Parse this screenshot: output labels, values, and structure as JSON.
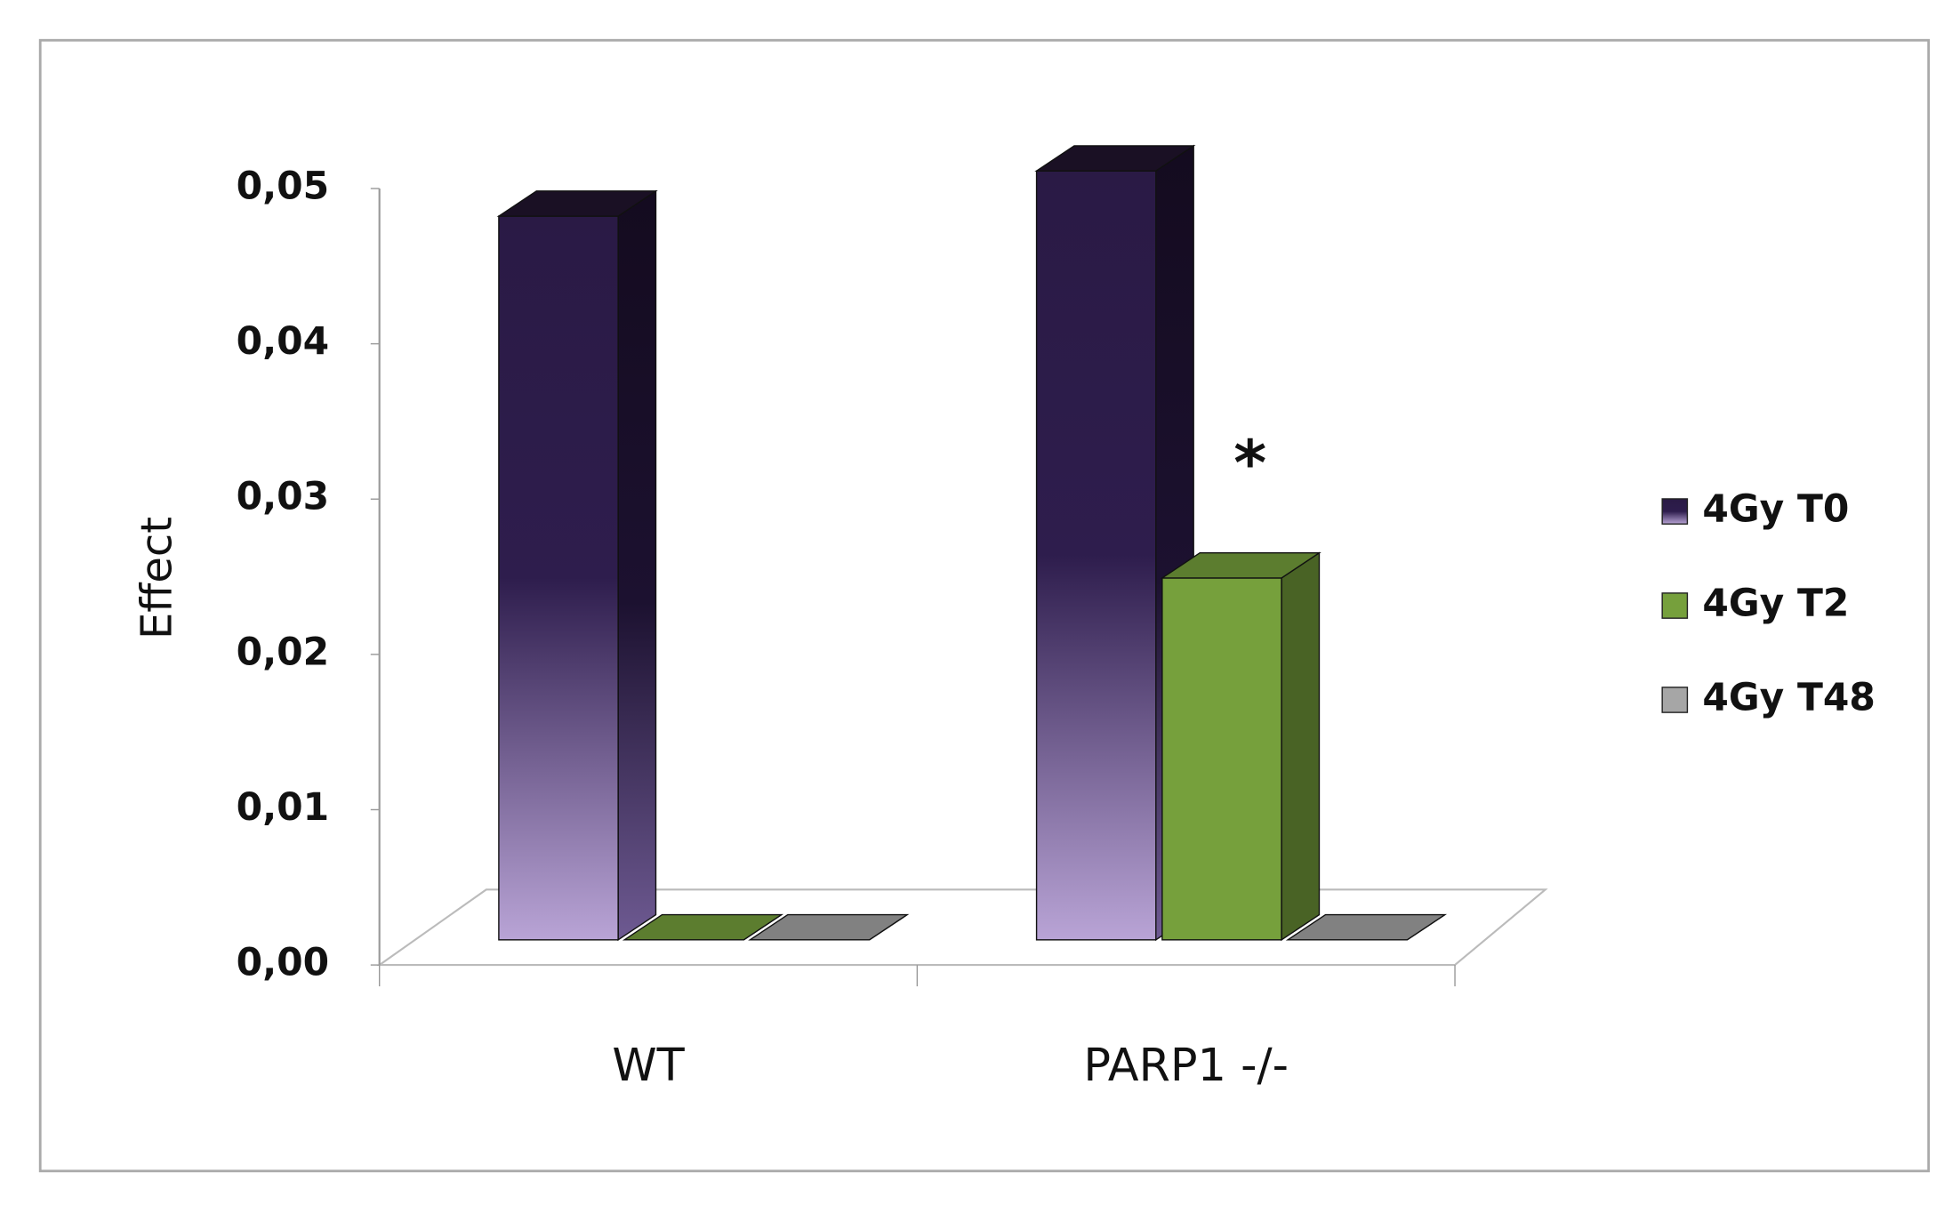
{
  "chart_data": {
    "type": "bar3d",
    "y_label": "Effect",
    "categories": [
      "WT",
      "PARP1 -/-"
    ],
    "series": [
      {
        "name": "4Gy T0",
        "color": "#2e1d4d",
        "values": [
          0.048,
          0.051
        ]
      },
      {
        "name": "4Gy T2",
        "color": "#76a03c",
        "values": [
          0,
          0.024
        ]
      },
      {
        "name": "4Gy T48",
        "color": "#a6a6a6",
        "values": [
          0,
          0
        ]
      }
    ],
    "ylim": [
      0,
      0.05
    ],
    "yticks": [
      {
        "value": 0,
        "label": "0,00"
      },
      {
        "value": 0.01,
        "label": "0,01"
      },
      {
        "value": 0.02,
        "label": "0,02"
      },
      {
        "value": 0.03,
        "label": "0,03"
      },
      {
        "value": 0.04,
        "label": "0,04"
      },
      {
        "value": 0.05,
        "label": "0,05"
      }
    ],
    "annotation": "*",
    "legend": "right"
  }
}
